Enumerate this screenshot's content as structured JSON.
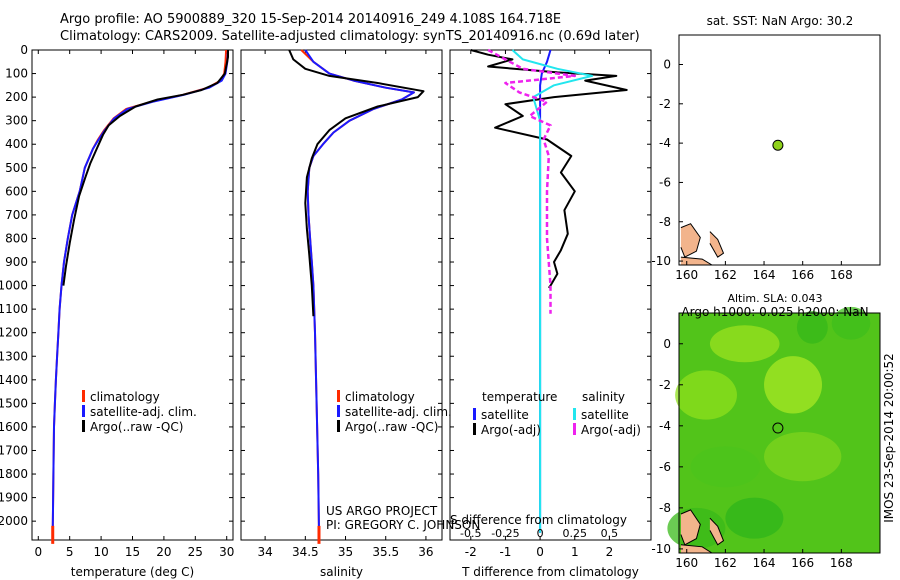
{
  "header": {
    "line1": "Argo profile: AO 5900889_320 15-Sep-2014 20140916_249 4.108S 164.718E",
    "line2": "Climatology: CARS2009. Satellite-adjusted climatology: synTS_20140916.nc (0.69d later)",
    "sst_title": "sat. SST: NaN Argo: 30.2",
    "sla_title1": "Altim. SLA: 0.043",
    "sla_title2": "Argo h1000: 0.025 h2000: NaN",
    "watermark": "IMOS 23-Sep-2014 20:00:52",
    "project1": "US ARGO PROJECT",
    "project2": "PI: GREGORY C. JOHNSON"
  },
  "colors": {
    "climatology": "#ff2a00",
    "satellite": "#1a1aff",
    "argo": "#000000",
    "sat_salinity": "#22e6ee",
    "argo_salinity": "#ee22ee",
    "sla_field": "#52c41a",
    "argo_dot": "#8fd11a",
    "land": "#f2b48c"
  },
  "chart_data": [
    {
      "type": "line",
      "panel": "temperature",
      "xlabel": "temperature (deg C)",
      "ylabel": "",
      "xlim": [
        -1,
        31
      ],
      "ylim": [
        2080,
        0
      ],
      "x_ticks": [
        0,
        5,
        10,
        15,
        20,
        25,
        30
      ],
      "y_ticks": [
        0,
        100,
        200,
        300,
        400,
        500,
        600,
        700,
        800,
        900,
        1000,
        1100,
        1200,
        1300,
        1400,
        1500,
        1600,
        1700,
        1800,
        1900,
        2000
      ],
      "legend": [
        "climatology",
        "satellite-adj. clim.",
        "Argo(..raw -QC)"
      ],
      "series": [
        {
          "name": "climatology",
          "x": [
            29.9,
            29.8,
            29.6,
            29,
            27,
            23,
            18,
            14,
            12,
            10.5,
            9.5,
            8.7,
            7.4,
            6.6,
            5.4,
            4.7,
            4.1,
            3.7,
            3.4,
            3.2,
            3,
            2.8,
            2.65,
            2.5,
            2.4,
            2.35,
            2.3
          ],
          "y": [
            0,
            50,
            100,
            130,
            160,
            190,
            220,
            250,
            290,
            340,
            380,
            420,
            500,
            600,
            700,
            800,
            900,
            1000,
            1100,
            1200,
            1300,
            1400,
            1500,
            1600,
            1800,
            1950,
            2050
          ]
        },
        {
          "name": "satellite-adj. clim.",
          "x": [
            30.2,
            30.1,
            29.8,
            29.2,
            27.2,
            23.2,
            18.2,
            14.2,
            12.1,
            10.6,
            9.6,
            8.7,
            7.4,
            6.6,
            5.4,
            4.7,
            4.1,
            3.7,
            3.4,
            3.2,
            3,
            2.8,
            2.65,
            2.5,
            2.4,
            2.35,
            2.3
          ],
          "y": [
            0,
            50,
            100,
            130,
            160,
            190,
            220,
            250,
            290,
            340,
            380,
            420,
            500,
            600,
            700,
            800,
            900,
            1000,
            1100,
            1200,
            1300,
            1400,
            1500,
            1600,
            1800,
            1950,
            2050
          ]
        },
        {
          "name": "Argo(..raw -QC)",
          "x": [
            30.2,
            30.2,
            30,
            29.7,
            28.5,
            26,
            23,
            19,
            15.5,
            13,
            11.2,
            10.3,
            9.3,
            8.3,
            7.5,
            6.5,
            5.7,
            5,
            4.4,
            4
          ],
          "y": [
            0,
            30,
            60,
            100,
            140,
            170,
            190,
            210,
            240,
            280,
            320,
            360,
            420,
            480,
            540,
            620,
            720,
            820,
            920,
            1000
          ]
        }
      ]
    },
    {
      "type": "line",
      "panel": "salinity",
      "xlabel": "salinity",
      "ylabel": "",
      "xlim": [
        33.7,
        36.2
      ],
      "ylim": [
        2080,
        0
      ],
      "x_ticks": [
        34,
        34.5,
        35,
        35.5,
        36
      ],
      "legend": [
        "climatology",
        "satellite-adj. clim.",
        "Argo(..raw -QC)"
      ],
      "series": [
        {
          "name": "climatology",
          "x": [
            34.45,
            34.6,
            34.8,
            35.1,
            35.5,
            35.85,
            35.7,
            35.35,
            35.05,
            34.85,
            34.72,
            34.6,
            34.55,
            34.53,
            34.54,
            34.56,
            34.58,
            34.6,
            34.62,
            34.64,
            34.66,
            34.67
          ],
          "y": [
            0,
            50,
            100,
            130,
            160,
            180,
            210,
            250,
            300,
            350,
            400,
            450,
            500,
            600,
            700,
            800,
            900,
            1000,
            1200,
            1500,
            1800,
            2050
          ]
        },
        {
          "name": "satellite-adj. clim.",
          "x": [
            34.5,
            34.6,
            34.8,
            35.1,
            35.5,
            35.85,
            35.7,
            35.35,
            35.05,
            34.85,
            34.72,
            34.6,
            34.55,
            34.53,
            34.54,
            34.56,
            34.58,
            34.6,
            34.62,
            34.64,
            34.66,
            34.67
          ],
          "y": [
            0,
            50,
            100,
            130,
            160,
            180,
            210,
            250,
            300,
            350,
            400,
            450,
            500,
            600,
            700,
            800,
            900,
            1000,
            1200,
            1500,
            1800,
            2050
          ]
        },
        {
          "name": "Argo(..raw -QC)",
          "x": [
            34.3,
            34.35,
            34.5,
            34.8,
            35.4,
            35.97,
            35.9,
            35.4,
            35,
            34.8,
            34.65,
            34.58,
            34.52,
            34.5,
            34.52,
            34.55,
            34.58,
            34.6
          ],
          "y": [
            0,
            40,
            80,
            110,
            140,
            175,
            200,
            240,
            290,
            340,
            400,
            460,
            540,
            650,
            760,
            870,
            1000,
            1130
          ]
        }
      ]
    },
    {
      "type": "line",
      "panel": "difference",
      "xlabel": "T difference from climatology",
      "xlabel_top": "S difference from climatology",
      "xlim": [
        -2.6,
        3.2
      ],
      "ylim": [
        2080,
        0
      ],
      "x_ticks": [
        -2,
        -1,
        0,
        1,
        2
      ],
      "x_ticks_top": [
        -0.5,
        -0.25,
        0,
        0.25,
        0.5
      ],
      "legend_temperature": [
        "temperature",
        "satellite",
        "Argo(-adj)"
      ],
      "legend_salinity": [
        "salinity",
        "satellite",
        "Argo(-adj)"
      ],
      "series": [
        {
          "name": "temperature satellite",
          "x": [
            0.3,
            0.2,
            0.05,
            0,
            0,
            0,
            0,
            0
          ],
          "y": [
            0,
            50,
            100,
            150,
            250,
            500,
            1000,
            2050
          ]
        },
        {
          "name": "temperature Argo(-adj)",
          "x": [
            -2,
            -1.5,
            -0.8,
            -1.5,
            0.5,
            2.2,
            1.3,
            2.5,
            0.4,
            -1,
            -0.5,
            -1.3,
            0.2,
            0.9,
            0.6,
            1,
            0.7,
            0.8,
            0.6,
            0.4,
            0.5,
            0.3,
            0.25
          ],
          "y": [
            0,
            20,
            40,
            70,
            95,
            110,
            130,
            170,
            200,
            230,
            280,
            330,
            380,
            450,
            520,
            600,
            680,
            780,
            850,
            900,
            950,
            1000,
            1010
          ]
        },
        {
          "name": "salinity satellite",
          "x": [
            -0.8,
            -0.5,
            0.5,
            1.5,
            0.4,
            -0.2,
            0,
            0,
            0,
            0
          ],
          "y": [
            0,
            40,
            80,
            110,
            150,
            200,
            300,
            500,
            1000,
            2050
          ]
        },
        {
          "name": "salinity Argo(-adj)",
          "x": [
            -1.5,
            -1,
            -0.5,
            1,
            -1,
            -0.6,
            0.2,
            -0.3,
            0.3,
            0.1,
            0.25,
            0.2,
            0.2,
            0.3,
            0.3
          ],
          "y": [
            0,
            40,
            80,
            110,
            140,
            180,
            220,
            280,
            320,
            380,
            450,
            600,
            800,
            1000,
            1120
          ]
        }
      ]
    },
    {
      "type": "scatter",
      "panel": "sat. SST map",
      "title": "sat. SST: NaN Argo: 30.2",
      "xlim": [
        159.6,
        170
      ],
      "ylim": [
        -10.2,
        1.5
      ],
      "x_ticks": [
        160,
        162,
        164,
        166,
        168
      ],
      "y_ticks": [
        0,
        -2,
        -4,
        -6,
        -8,
        -10
      ],
      "points": [
        {
          "x": 164.718,
          "y": -4.108
        }
      ]
    },
    {
      "type": "heatmap",
      "panel": "Altim. SLA map",
      "title": "Altim. SLA: 0.043",
      "subtitle": "Argo h1000: 0.025 h2000: NaN",
      "xlim": [
        159.6,
        170
      ],
      "ylim": [
        -10.2,
        1.5
      ],
      "x_ticks": [
        160,
        162,
        164,
        166,
        168
      ],
      "y_ticks": [
        0,
        -2,
        -4,
        -6,
        -8,
        -10
      ],
      "points": [
        {
          "x": 164.718,
          "y": -4.108
        }
      ]
    }
  ]
}
